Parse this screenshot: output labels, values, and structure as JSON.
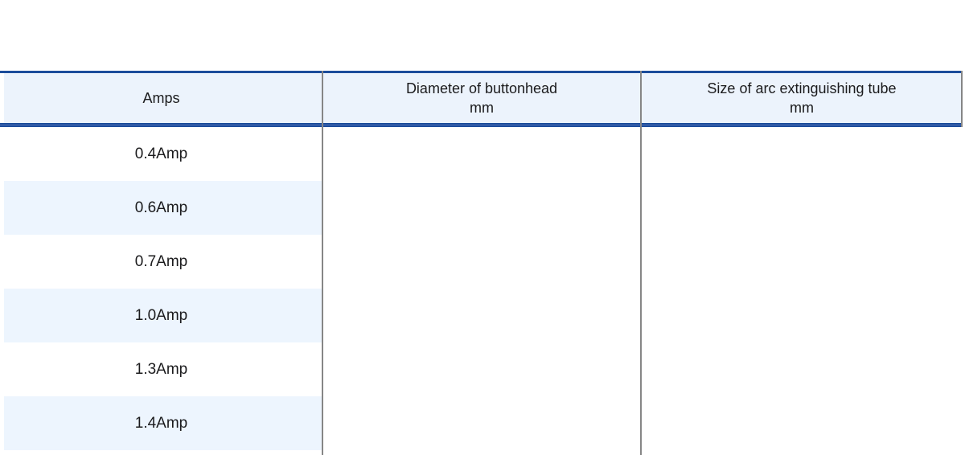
{
  "table": {
    "columns": [
      {
        "label": "Amps",
        "sublabel": ""
      },
      {
        "label": "Diameter of buttonhead",
        "sublabel": "mm"
      },
      {
        "label": "Size of arc extinguishing tube",
        "sublabel": "mm"
      }
    ],
    "rows": [
      {
        "amps": "0.4Amp",
        "diameter": "",
        "tube": ""
      },
      {
        "amps": "0.6Amp",
        "diameter": "",
        "tube": ""
      },
      {
        "amps": "0.7Amp",
        "diameter": "",
        "tube": ""
      },
      {
        "amps": "1.0Amp",
        "diameter": "",
        "tube": ""
      },
      {
        "amps": "1.3Amp",
        "diameter": "",
        "tube": ""
      },
      {
        "amps": "1.4Amp",
        "diameter": "",
        "tube": ""
      }
    ]
  },
  "colors": {
    "accent_rule": "#1b4c9b",
    "rule_inner": "#5574b8",
    "header_fill": "#ecf3fc",
    "stripe_fill": "#edf5fe",
    "divider_gray": "#868686",
    "text": "#1b1b1d"
  }
}
